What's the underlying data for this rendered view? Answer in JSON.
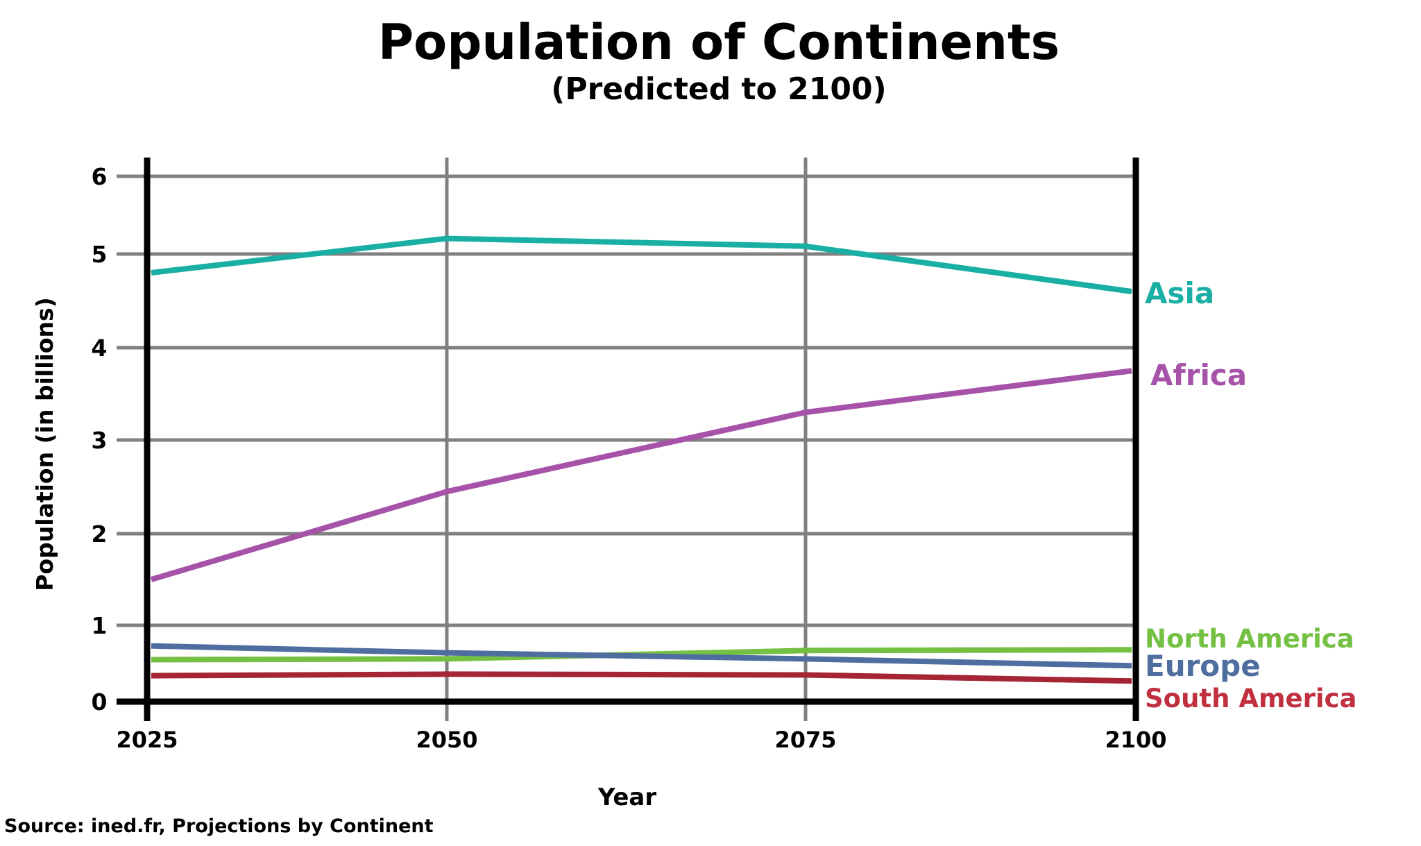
{
  "chart_data": {
    "type": "line",
    "title": "Population of Continents",
    "subtitle": "(Predicted to 2100)",
    "xlabel": "Year",
    "ylabel": "Population (in billions)",
    "x": [
      "2025",
      "2050",
      "2075",
      "2100"
    ],
    "x_tick_labels": [
      "2025",
      "2050",
      "2075",
      "2100"
    ],
    "y_ticks": [
      0,
      1,
      2,
      3,
      4,
      5,
      6
    ],
    "y_tick_labels": [
      "0",
      "1",
      "2",
      "3",
      "4",
      "5",
      "6"
    ],
    "ylim": [
      0,
      6
    ],
    "grid": true,
    "legend": "right-end labels",
    "series": [
      {
        "name": "Asia",
        "color": "#1aafa5",
        "label_color": "#1aafa5",
        "values": [
          4.8,
          5.2,
          5.1,
          4.6
        ]
      },
      {
        "name": "Africa",
        "color": "#a652a8",
        "label_color": "#a652a8",
        "values": [
          1.5,
          2.45,
          3.3,
          3.75
        ]
      },
      {
        "name": "North America",
        "color": "#74c043",
        "label_color": "#74c043",
        "values": [
          0.55,
          0.56,
          0.67,
          0.68
        ]
      },
      {
        "name": "Europe",
        "color": "#4f6ea0",
        "label_color": "#4f6ea0",
        "values": [
          0.73,
          0.64,
          0.56,
          0.47
        ]
      },
      {
        "name": "South America",
        "color": "#a52535",
        "label_color": "#c0303f",
        "values": [
          0.34,
          0.36,
          0.35,
          0.27
        ]
      }
    ],
    "source": "Source: ined.fr, Projections by Continent"
  },
  "colors": {
    "grid": "#808080",
    "axis": "#000000",
    "text": "#000000"
  }
}
